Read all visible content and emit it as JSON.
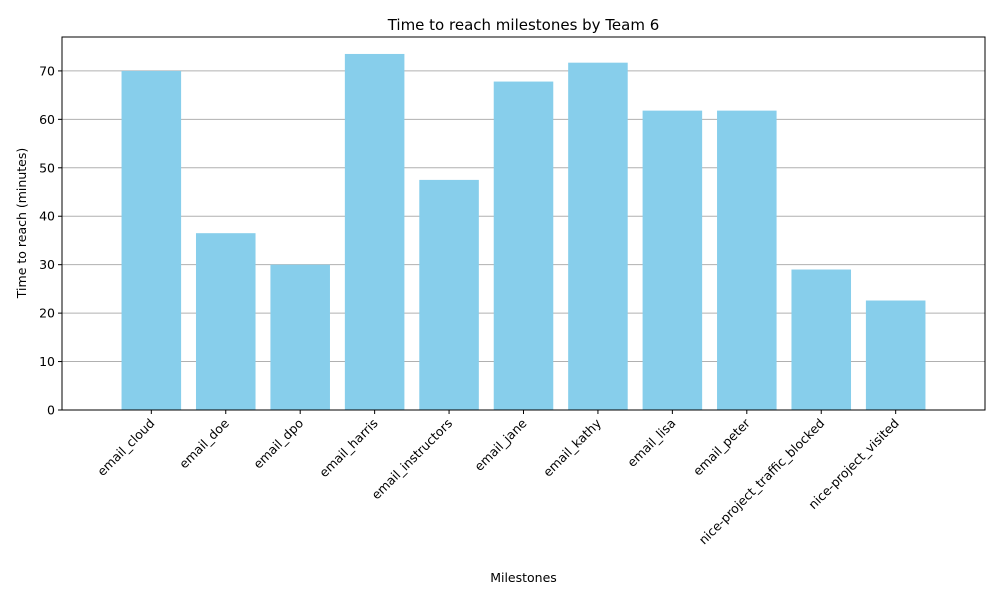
{
  "chart_data": {
    "type": "bar",
    "title": "Time to reach milestones by Team 6",
    "xlabel": "Milestones",
    "ylabel": "Time to reach (minutes)",
    "categories": [
      "email_cloud",
      "email_doe",
      "email_dpo",
      "email_harris",
      "email_instructors",
      "email_jane",
      "email_kathy",
      "email_lisa",
      "email_peter",
      "nice-project_traffic_blocked",
      "nice-project_visited"
    ],
    "values": [
      70.0,
      36.5,
      30.0,
      73.5,
      47.5,
      67.8,
      71.7,
      61.8,
      61.8,
      29.0,
      22.6
    ],
    "ylim": [
      0,
      77
    ],
    "yticks": [
      0,
      10,
      20,
      30,
      40,
      50,
      60,
      70
    ],
    "bar_color": "#87ceeb",
    "grid_axis": "y",
    "legend": "none"
  }
}
